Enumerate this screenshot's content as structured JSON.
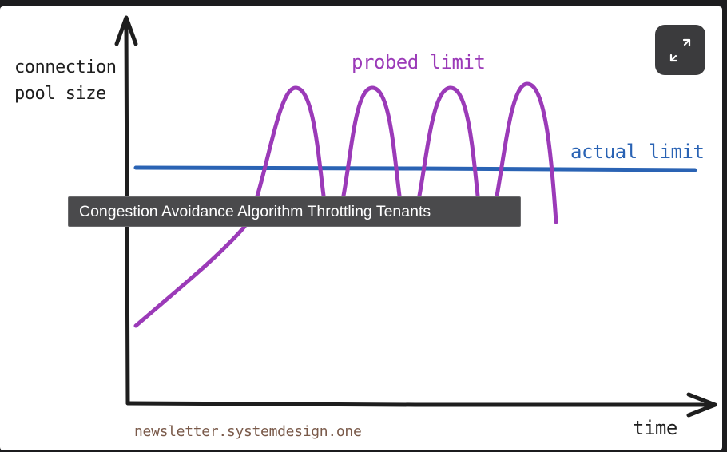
{
  "figure": {
    "y_axis_label_line1": "connection",
    "y_axis_label_line2": "pool size",
    "x_axis_label": "time",
    "probed_limit_label": "probed limit",
    "actual_limit_label": "actual limit",
    "watermark": "newsletter.systemdesign.one"
  },
  "tooltip": {
    "text": "Congestion Avoidance Algorithm Throttling Tenants"
  },
  "expand_button": {
    "icon": "expand-arrows-icon"
  },
  "colors": {
    "probed_limit": "#9b3ab8",
    "actual_limit": "#2a63b4",
    "axes": "#1e1e1e",
    "watermark": "#7a5a4a",
    "tooltip_bg": "#4a4a4c",
    "page_bg": "#1c1c1e"
  }
}
